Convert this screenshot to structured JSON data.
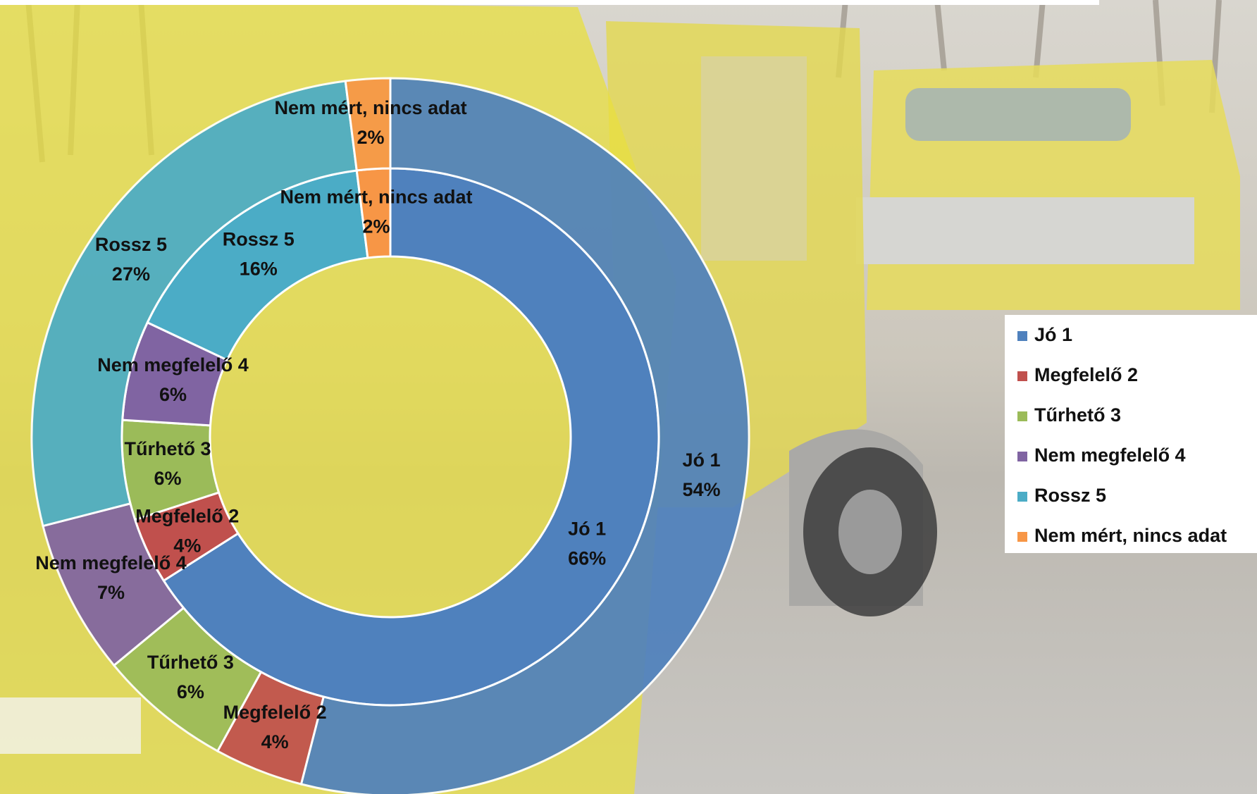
{
  "chart_data": {
    "type": "donut",
    "categories": [
      "Jó 1",
      "Megfelelő 2",
      "Tűrhető 3",
      "Nem megfelelő 4",
      "Rossz 5",
      "Nem mért, nincs adat"
    ],
    "colors": [
      "#4f81bd",
      "#c0504d",
      "#9bbb59",
      "#8064a2",
      "#4bacc6",
      "#f79646"
    ],
    "series": [
      {
        "values": [
          66,
          4,
          6,
          6,
          16,
          2
        ],
        "value_labels": [
          "66%",
          "4%",
          "6%",
          "6%",
          "16%",
          "2%"
        ]
      },
      {
        "values": [
          54,
          4,
          6,
          7,
          27,
          2
        ],
        "value_labels": [
          "54%",
          "4%",
          "6%",
          "7%",
          "27%",
          "2%"
        ]
      }
    ],
    "legend": "right"
  }
}
